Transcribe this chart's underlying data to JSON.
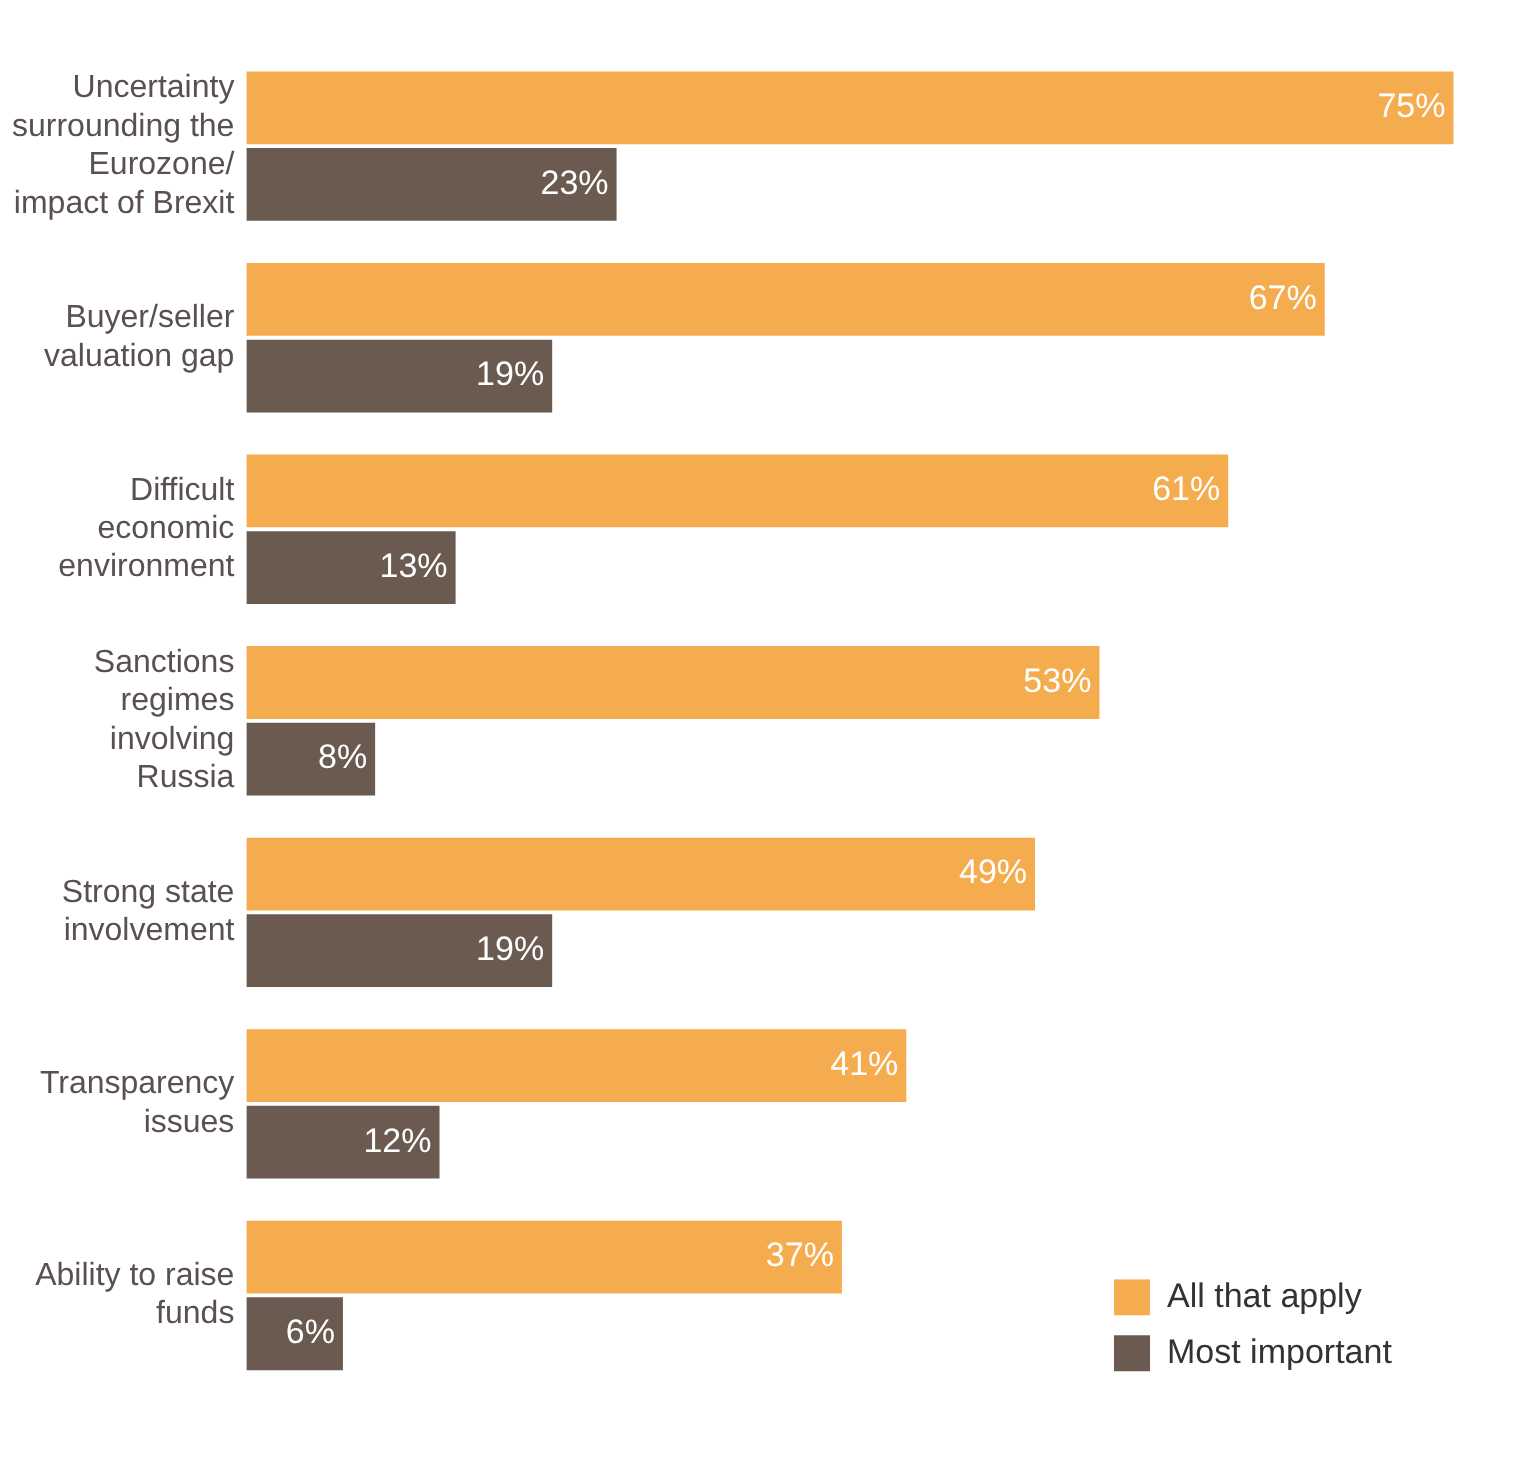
{
  "chart_data": {
    "type": "bar",
    "orientation": "horizontal",
    "categories": [
      "Uncertainty surrounding the Eurozone/ impact of Brexit",
      "Buyer/seller valuation gap",
      "Difficult economic environment",
      "Sanctions regimes involving Russia",
      "Strong state involvement",
      "Transparency issues",
      "Ability to raise funds"
    ],
    "series": [
      {
        "name": "All that apply",
        "color": "#f5ac4e",
        "values": [
          75,
          67,
          61,
          53,
          49,
          41,
          37
        ],
        "value_labels": [
          "75%",
          "67%",
          "61%",
          "53%",
          "49%",
          "41%",
          "37%"
        ]
      },
      {
        "name": "Most important",
        "color": "#6b5a4f",
        "values": [
          23,
          19,
          13,
          8,
          19,
          12,
          6
        ],
        "value_labels": [
          "23%",
          "19%",
          "13%",
          "8%",
          "19%",
          "12%",
          "6%"
        ]
      }
    ],
    "legend": "bottom right",
    "tick_labels": "y"
  }
}
